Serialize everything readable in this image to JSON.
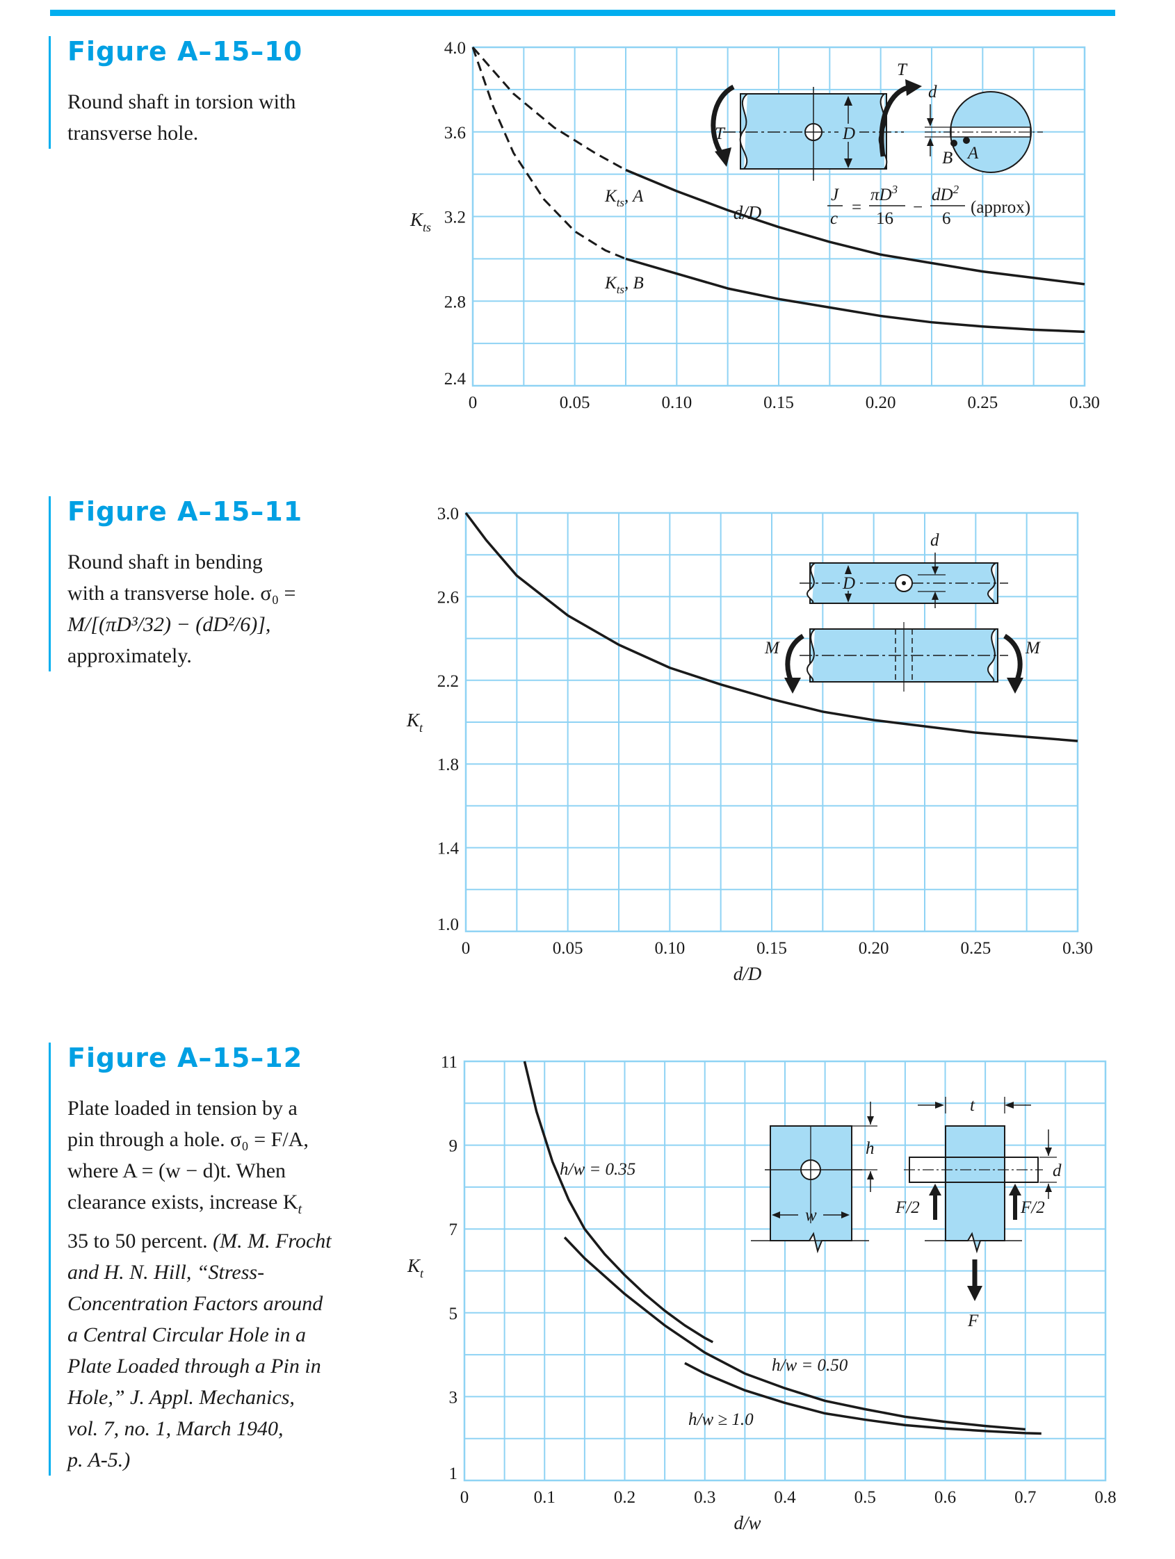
{
  "figures": [
    {
      "title": "Figure A–15–10",
      "caption_lines": [
        "Round shaft in torsion with",
        "transverse hole."
      ]
    },
    {
      "title": "Figure A–15–11",
      "caption_lines": [
        "Round shaft in bending",
        "with a transverse hole. σ₀ =",
        "M/[(πD³/32) − (dD²/6)],",
        "approximately."
      ]
    },
    {
      "title": "Figure A–15–12",
      "caption_lines": [
        "Plate loaded in tension by a",
        "pin through a hole. σ₀ = F/A,",
        "where A = (w − d)t. When",
        "clearance exists, increase K",
        "35 to 50 percent."
      ],
      "caption_t_sub": "t",
      "citation_lines": [
        "(M. M. Frocht",
        "and H. N. Hill, “Stress-",
        "Concentration Factors around",
        "a Central Circular Hole in a",
        "Plate Loaded through a Pin in",
        "Hole,” J. Appl. Mechanics,",
        "vol. 7, no. 1, March 1940,",
        "p. A-5.)"
      ]
    }
  ],
  "colors": {
    "accent": "#00aeef",
    "title": "#00a0e3",
    "grid": "#8fd3f4",
    "part_fill": "#a6dcf5"
  },
  "chart_data": [
    {
      "type": "line",
      "xlabel": "d/D",
      "ylabel": "K",
      "ylabel_sub": "ts",
      "xlim": [
        0,
        0.3
      ],
      "ylim": [
        2.4,
        4.0
      ],
      "xticks": [
        0,
        0.05,
        0.1,
        0.15,
        0.2,
        0.25,
        0.3
      ],
      "xtick_labels": [
        "0",
        "0.05",
        "0.10",
        "0.15",
        "0.20",
        "0.25",
        "0.30"
      ],
      "yticks": [
        2.4,
        2.8,
        3.2,
        3.6,
        4.0
      ],
      "ytick_labels": [
        "2.4",
        "2.8",
        "3.2",
        "3.6",
        "4.0"
      ],
      "grid": true,
      "series": [
        {
          "name": "Kts, A",
          "label_main": "K",
          "label_sub": "ts",
          "label_tail": ", A",
          "dashed_until": 0.075,
          "x": [
            0,
            0.02,
            0.04,
            0.06,
            0.075,
            0.1,
            0.125,
            0.15,
            0.175,
            0.2,
            0.225,
            0.25,
            0.275,
            0.3
          ],
          "y": [
            4.0,
            3.78,
            3.62,
            3.5,
            3.42,
            3.32,
            3.23,
            3.15,
            3.08,
            3.02,
            2.98,
            2.94,
            2.91,
            2.88
          ]
        },
        {
          "name": "Kts, B",
          "label_main": "K",
          "label_sub": "ts",
          "label_tail": ", B",
          "dashed_until": 0.075,
          "x": [
            0,
            0.01,
            0.02,
            0.035,
            0.05,
            0.065,
            0.075,
            0.1,
            0.125,
            0.15,
            0.175,
            0.2,
            0.225,
            0.25,
            0.275,
            0.3
          ],
          "y": [
            4.0,
            3.72,
            3.5,
            3.28,
            3.13,
            3.04,
            3.0,
            2.93,
            2.86,
            2.81,
            2.77,
            2.73,
            2.7,
            2.68,
            2.665,
            2.655
          ]
        }
      ],
      "inset": {
        "T": "T",
        "D": "D",
        "d": "d",
        "A": "A",
        "B": "B",
        "formula": {
          "J": "J",
          "c": "c",
          "eq": "=",
          "num1": "πD",
          "num1_sup": "3",
          "den1": "16",
          "minus": "−",
          "num2": "dD",
          "num2_sup": "2",
          "den2": "6",
          "approx": "(approx)"
        }
      }
    },
    {
      "type": "line",
      "xlabel": "d/D",
      "ylabel": "K",
      "ylabel_sub": "t",
      "xlim": [
        0,
        0.3
      ],
      "ylim": [
        1.0,
        3.0
      ],
      "xticks": [
        0,
        0.05,
        0.1,
        0.15,
        0.2,
        0.25,
        0.3
      ],
      "xtick_labels": [
        "0",
        "0.05",
        "0.10",
        "0.15",
        "0.20",
        "0.25",
        "0.30"
      ],
      "yticks": [
        1.0,
        1.4,
        1.8,
        2.2,
        2.6,
        3.0
      ],
      "ytick_labels": [
        "1.0",
        "1.4",
        "1.8",
        "2.2",
        "2.6",
        "3.0"
      ],
      "grid": true,
      "series": [
        {
          "x": [
            0,
            0.01,
            0.025,
            0.05,
            0.075,
            0.1,
            0.125,
            0.15,
            0.175,
            0.2,
            0.225,
            0.25,
            0.275,
            0.3
          ],
          "y": [
            3.0,
            2.87,
            2.7,
            2.51,
            2.37,
            2.26,
            2.18,
            2.11,
            2.05,
            2.01,
            1.98,
            1.95,
            1.93,
            1.91
          ]
        }
      ],
      "inset": {
        "D": "D",
        "d": "d",
        "M": "M"
      }
    },
    {
      "type": "line",
      "xlabel": "d/w",
      "ylabel": "K",
      "ylabel_sub": "t",
      "xlim": [
        0,
        0.8
      ],
      "ylim": [
        1,
        11
      ],
      "xticks": [
        0,
        0.1,
        0.2,
        0.3,
        0.4,
        0.5,
        0.6,
        0.7,
        0.8
      ],
      "xtick_labels": [
        "0",
        "0.1",
        "0.2",
        "0.3",
        "0.4",
        "0.5",
        "0.6",
        "0.7",
        "0.8"
      ],
      "yticks": [
        1,
        3,
        5,
        7,
        9,
        11
      ],
      "ytick_labels": [
        "1",
        "3",
        "5",
        "7",
        "9",
        "11"
      ],
      "grid": true,
      "series": [
        {
          "name": "h/w = 0.35",
          "label": "h/w = 0.35",
          "x": [
            0.075,
            0.09,
            0.11,
            0.13,
            0.15,
            0.175,
            0.2,
            0.225,
            0.25,
            0.275,
            0.3,
            0.31
          ],
          "y": [
            11.0,
            9.8,
            8.6,
            7.7,
            7.0,
            6.4,
            5.9,
            5.45,
            5.05,
            4.7,
            4.4,
            4.3
          ]
        },
        {
          "name": "h/w = 0.50",
          "label": "h/w = 0.50",
          "x": [
            0.125,
            0.15,
            0.2,
            0.25,
            0.3,
            0.35,
            0.4,
            0.45,
            0.5,
            0.55,
            0.6,
            0.65,
            0.7
          ],
          "y": [
            6.8,
            6.3,
            5.45,
            4.7,
            4.05,
            3.55,
            3.2,
            2.9,
            2.7,
            2.52,
            2.4,
            2.3,
            2.22
          ]
        },
        {
          "name": "h/w ≥ 1.0",
          "label": "h/w ≥ 1.0",
          "x": [
            0.275,
            0.3,
            0.35,
            0.4,
            0.45,
            0.5,
            0.55,
            0.6,
            0.65,
            0.7,
            0.72
          ],
          "y": [
            3.8,
            3.55,
            3.15,
            2.85,
            2.6,
            2.45,
            2.32,
            2.24,
            2.18,
            2.13,
            2.12
          ]
        }
      ],
      "inset": {
        "h": "h",
        "w": "w",
        "t": "t",
        "d": "d",
        "F2": "F/2",
        "F": "F"
      }
    }
  ]
}
